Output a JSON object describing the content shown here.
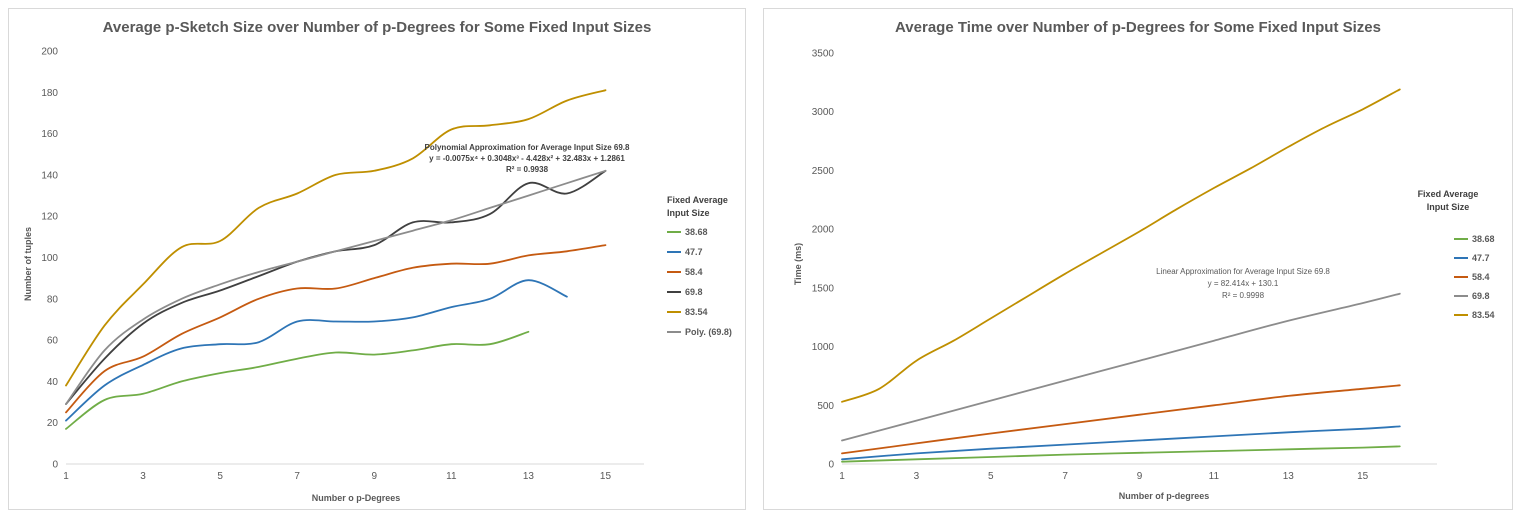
{
  "chart_data": [
    {
      "type": "line",
      "title": "Average p-Sketch Size over Number of p-Degrees for Some Fixed Input Sizes",
      "xlabel": "Number o p-Degrees",
      "ylabel": "Number of tuples",
      "xlim": [
        1,
        16
      ],
      "ylim": [
        0,
        200
      ],
      "x_ticks": [
        1,
        3,
        5,
        7,
        9,
        11,
        13,
        15
      ],
      "y_ticks": [
        0,
        20,
        40,
        60,
        80,
        100,
        120,
        140,
        160,
        180,
        200
      ],
      "grid": false,
      "legend": {
        "title_lines": [
          "Fixed Average",
          "Input Size"
        ],
        "placement": "right"
      },
      "series": [
        {
          "name": "38.68",
          "color": "#70ad47",
          "x": [
            1,
            2,
            3,
            4,
            5,
            6,
            7,
            8,
            9,
            10,
            11,
            12,
            13
          ],
          "values": [
            17,
            31,
            34,
            40,
            44,
            47,
            51,
            54,
            53,
            55,
            58,
            58,
            64
          ]
        },
        {
          "name": "47.7",
          "color": "#2e75b6",
          "x": [
            1,
            2,
            3,
            4,
            5,
            6,
            7,
            8,
            9,
            10,
            11,
            12,
            13,
            14
          ],
          "values": [
            21,
            38,
            48,
            56,
            58,
            59,
            69,
            69,
            69,
            71,
            76,
            80,
            89,
            81
          ]
        },
        {
          "name": "58.4",
          "color": "#c55a11",
          "x": [
            1,
            2,
            3,
            4,
            5,
            6,
            7,
            8,
            9,
            10,
            11,
            12,
            13,
            14,
            15
          ],
          "values": [
            25,
            45,
            52,
            63,
            71,
            80,
            85,
            85,
            90,
            95,
            97,
            97,
            101,
            103,
            106
          ]
        },
        {
          "name": "69.8",
          "color": "#404040",
          "x": [
            1,
            2,
            3,
            4,
            5,
            6,
            7,
            8,
            9,
            10,
            11,
            12,
            13,
            14,
            15
          ],
          "values": [
            29,
            51,
            68,
            78,
            84,
            91,
            98,
            103,
            106,
            117,
            117,
            121,
            136,
            131,
            142
          ]
        },
        {
          "name": "83.54",
          "color": "#bf8f00",
          "x": [
            1,
            2,
            3,
            4,
            5,
            6,
            7,
            8,
            9,
            10,
            11,
            12,
            13,
            14,
            15
          ],
          "values": [
            38,
            67,
            87,
            105,
            108,
            124,
            131,
            140,
            142,
            148,
            162,
            164,
            167,
            176,
            181
          ]
        },
        {
          "name": "Poly. (69.8)",
          "color": "#8c8c8c",
          "x": [
            1,
            2,
            3,
            4,
            5,
            6,
            7,
            8,
            9,
            10,
            11,
            12,
            13,
            14,
            15
          ],
          "values": [
            29,
            55,
            70,
            80,
            87,
            93,
            98,
            103,
            108,
            113,
            118,
            124,
            130,
            136,
            142
          ]
        }
      ],
      "annotation": {
        "lines": [
          "Polynomial Approximation for Average Input Size 69.8",
          "y = -0.0075x⁴ + 0.3048x³ - 4.428x² + 32.483x + 1.2861",
          "R² = 0.9938"
        ]
      }
    },
    {
      "type": "line",
      "title": "Average Time over Number of p-Degrees for Some Fixed Input Sizes",
      "xlabel": "Number of p-degrees",
      "ylabel": "Time (ms)",
      "xlim": [
        1,
        17
      ],
      "ylim": [
        0,
        3500
      ],
      "x_ticks": [
        1,
        3,
        5,
        7,
        9,
        11,
        13,
        15
      ],
      "y_ticks": [
        0,
        500,
        1000,
        1500,
        2000,
        2500,
        3000,
        3500
      ],
      "grid": false,
      "legend": {
        "title_lines": [
          "Fixed Average",
          "Input Size"
        ],
        "placement": "right"
      },
      "series": [
        {
          "name": "38.68",
          "color": "#70ad47",
          "x": [
            1,
            3,
            5,
            7,
            9,
            11,
            13,
            15,
            16
          ],
          "values": [
            20,
            40,
            60,
            80,
            95,
            110,
            125,
            140,
            150
          ]
        },
        {
          "name": "47.7",
          "color": "#2e75b6",
          "x": [
            1,
            3,
            5,
            7,
            9,
            11,
            13,
            15,
            16
          ],
          "values": [
            40,
            90,
            130,
            165,
            200,
            235,
            270,
            300,
            320
          ]
        },
        {
          "name": "58.4",
          "color": "#c55a11",
          "x": [
            1,
            3,
            5,
            7,
            9,
            11,
            13,
            15,
            16
          ],
          "values": [
            90,
            175,
            260,
            340,
            420,
            500,
            580,
            640,
            670
          ]
        },
        {
          "name": "69.8",
          "color": "#8c8c8c",
          "x": [
            1,
            3,
            5,
            7,
            9,
            11,
            13,
            15,
            16
          ],
          "values": [
            200,
            370,
            540,
            710,
            880,
            1050,
            1220,
            1370,
            1450
          ]
        },
        {
          "name": "83.54",
          "color": "#bf8f00",
          "x": [
            1,
            2,
            3,
            4,
            5,
            6,
            7,
            8,
            9,
            10,
            11,
            12,
            13,
            14,
            15,
            16
          ],
          "values": [
            530,
            640,
            880,
            1050,
            1240,
            1430,
            1620,
            1800,
            1980,
            2170,
            2350,
            2520,
            2700,
            2870,
            3020,
            3190
          ]
        }
      ],
      "annotation": {
        "lines": [
          "Linear Approximation for Average Input Size 69.8",
          "y = 82.414x + 130.1",
          "R² = 0.9998"
        ]
      }
    }
  ]
}
